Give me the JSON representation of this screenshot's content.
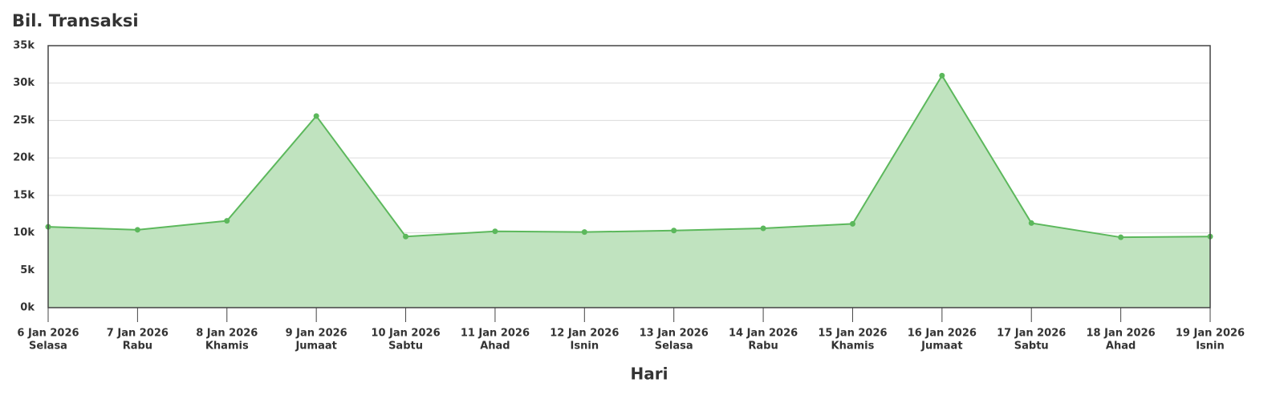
{
  "chart_data": {
    "type": "area",
    "title": "Bil. Transaksi",
    "x_label": "Hari",
    "categories": [
      "6 Jan 2026",
      "7 Jan 2026",
      "8 Jan 2026",
      "9 Jan 2026",
      "10 Jan 2026",
      "11 Jan 2026",
      "12 Jan 2026",
      "13 Jan 2026",
      "14 Jan 2026",
      "15 Jan 2026",
      "16 Jan 2026",
      "17 Jan 2026",
      "18 Jan 2026",
      "19 Jan 2026"
    ],
    "weekdays": [
      "Selasa",
      "Rabu",
      "Khamis",
      "Jumaat",
      "Sabtu",
      "Ahad",
      "Isnin",
      "Selasa",
      "Rabu",
      "Khamis",
      "Jumaat",
      "Sabtu",
      "Ahad",
      "Isnin"
    ],
    "values": [
      10800,
      10400,
      11600,
      25600,
      9500,
      10200,
      10100,
      10300,
      10600,
      11200,
      31000,
      11300,
      9400,
      9500
    ],
    "color": "#5cb85c",
    "fill": "#c0e3bf",
    "ylim": [
      0,
      35000
    ],
    "yticks": [
      {
        "value": 0,
        "label": "0k"
      },
      {
        "value": 5000,
        "label": "5k"
      },
      {
        "value": 10000,
        "label": "10k"
      },
      {
        "value": 15000,
        "label": "15k"
      },
      {
        "value": 20000,
        "label": "20k"
      },
      {
        "value": 25000,
        "label": "25k"
      },
      {
        "value": 30000,
        "label": "30k"
      },
      {
        "value": 35000,
        "label": "35k"
      }
    ],
    "grid": true
  }
}
